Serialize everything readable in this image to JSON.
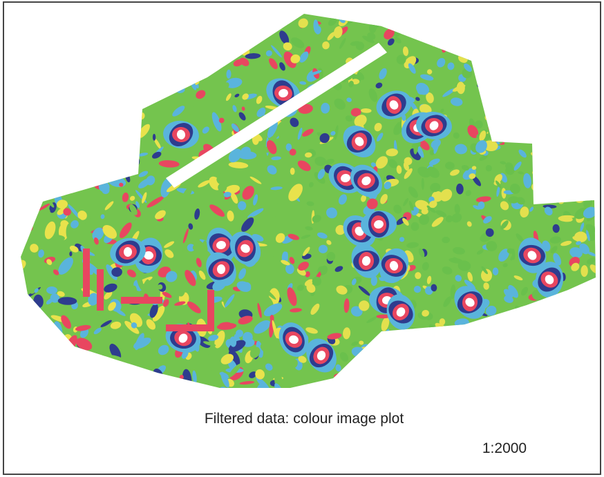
{
  "figure": {
    "caption": "Filtered data:  colour image plot",
    "scale": "1:2000"
  }
}
